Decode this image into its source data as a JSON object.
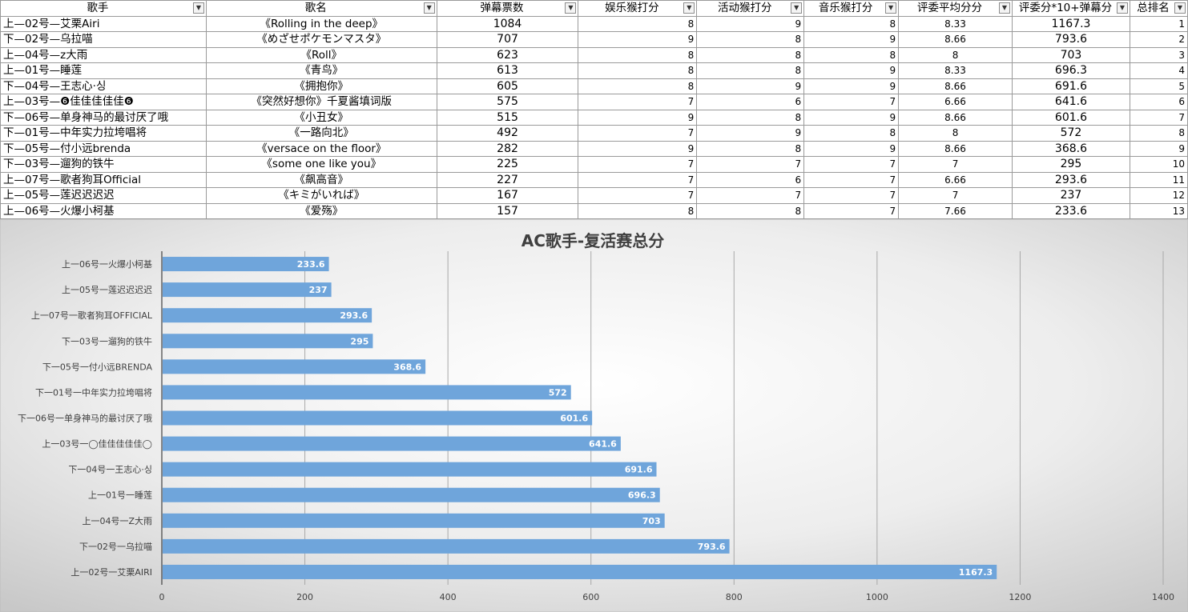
{
  "table": {
    "headers": [
      "歌手",
      "歌名",
      "弹幕票数",
      "娱乐猴打分",
      "活动猴打分",
      "音乐猴打分",
      "评委平均分分",
      "评委分*10+弹幕分",
      "总排名"
    ],
    "filter_icon": "dropdown-arrow-icon",
    "rows": [
      {
        "singer": "上—02号—艾栗Airi",
        "song": "《Rolling in the deep》",
        "votes": "1084",
        "ent": "8",
        "act": "9",
        "music": "8",
        "avg": "8.33",
        "total": "1167.3",
        "rank": "1"
      },
      {
        "singer": "下—02号—乌拉喵",
        "song": "《めざせポケモンマスタ》",
        "votes": "707",
        "ent": "9",
        "act": "8",
        "music": "9",
        "avg": "8.66",
        "total": "793.6",
        "rank": "2"
      },
      {
        "singer": "上—04号—z大雨",
        "song": "《Roll》",
        "votes": "623",
        "ent": "8",
        "act": "8",
        "music": "8",
        "avg": "8",
        "total": "703",
        "rank": "3"
      },
      {
        "singer": "上—01号—睡莲",
        "song": "《青鸟》",
        "votes": "613",
        "ent": "8",
        "act": "8",
        "music": "9",
        "avg": "8.33",
        "total": "696.3",
        "rank": "4"
      },
      {
        "singer": "下—04号—王志心·싱",
        "song": "《拥抱你》",
        "votes": "605",
        "ent": "8",
        "act": "9",
        "music": "9",
        "avg": "8.66",
        "total": "691.6",
        "rank": "5"
      },
      {
        "singer": "上—03号—❻佳佳佳佳佳❻",
        "song": "《突然好想你》千夏酱填词版",
        "votes": "575",
        "ent": "7",
        "act": "6",
        "music": "7",
        "avg": "6.66",
        "total": "641.6",
        "rank": "6"
      },
      {
        "singer": "下—06号—单身神马的最讨厌了哦",
        "song": "《小丑女》",
        "votes": "515",
        "ent": "9",
        "act": "8",
        "music": "9",
        "avg": "8.66",
        "total": "601.6",
        "rank": "7"
      },
      {
        "singer": "下—01号—中年实力拉垮唱将",
        "song": "《一路向北》",
        "votes": "492",
        "ent": "7",
        "act": "9",
        "music": "8",
        "avg": "8",
        "total": "572",
        "rank": "8"
      },
      {
        "singer": "下—05号—付小远brenda",
        "song": "《versace on the floor》",
        "votes": "282",
        "ent": "9",
        "act": "8",
        "music": "9",
        "avg": "8.66",
        "total": "368.6",
        "rank": "9"
      },
      {
        "singer": "下—03号—遛狗的铁牛",
        "song": "《some one like you》",
        "votes": "225",
        "ent": "7",
        "act": "7",
        "music": "7",
        "avg": "7",
        "total": "295",
        "rank": "10"
      },
      {
        "singer": "上—07号—歌者狗耳Official",
        "song": "《飙高音》",
        "votes": "227",
        "ent": "7",
        "act": "6",
        "music": "7",
        "avg": "6.66",
        "total": "293.6",
        "rank": "11"
      },
      {
        "singer": "上—05号—莲迟迟迟迟",
        "song": "《キミがいれば》",
        "votes": "167",
        "ent": "7",
        "act": "7",
        "music": "7",
        "avg": "7",
        "total": "237",
        "rank": "12"
      },
      {
        "singer": "上—06号—火爆小柯基",
        "song": "《爱殇》",
        "votes": "157",
        "ent": "8",
        "act": "8",
        "music": "7",
        "avg": "7.66",
        "total": "233.6",
        "rank": "13"
      }
    ]
  },
  "chart_data": {
    "type": "bar",
    "orientation": "horizontal",
    "title": "AC歌手-复活赛总分",
    "categories": [
      "上一02号一艾栗AIRI",
      "下一02号一乌拉喵",
      "上一04号一Z大雨",
      "上一01号一睡莲",
      "下一04号一王志心·싱",
      "上一03号一◯佳佳佳佳佳◯",
      "下一06号一单身神马的最讨厌了哦",
      "下一01号一中年实力拉垮唱将",
      "下一05号一付小远BRENDA",
      "下一03号一遛狗的铁牛",
      "上一07号一歌者狗耳OFFICIAL",
      "上一05号一莲迟迟迟迟",
      "上一06号一火爆小柯基"
    ],
    "values": [
      1167.3,
      793.6,
      703,
      696.3,
      691.6,
      641.6,
      601.6,
      572,
      368.6,
      295,
      293.6,
      237,
      233.6
    ],
    "data_labels": [
      "1167.3",
      "793.6",
      "703",
      "696.3",
      "691.6",
      "641.6",
      "601.6",
      "572",
      "368.6",
      "295",
      "293.6",
      "237",
      "233.6"
    ],
    "xlim": [
      0,
      1400
    ],
    "x_ticks": [
      "0",
      "200",
      "400",
      "600",
      "800",
      "1000",
      "1200",
      "1400"
    ],
    "grid": true,
    "legend": "none",
    "bar_color": "#6fa5db",
    "label_color": "#ffffff",
    "title_color": "#404040"
  }
}
